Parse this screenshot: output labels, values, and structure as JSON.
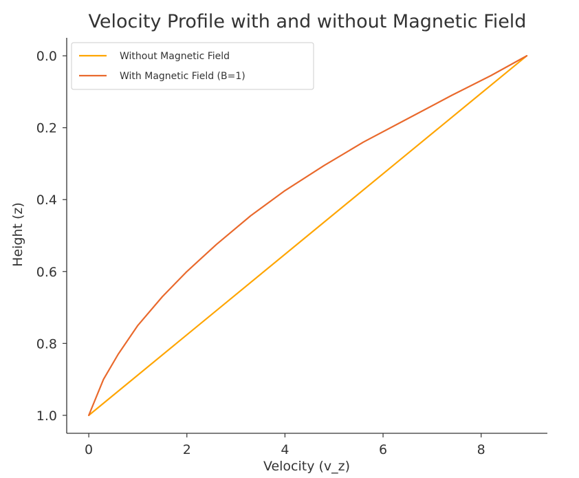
{
  "chart_data": {
    "type": "line",
    "title": "Velocity Profile with and without Magnetic Field",
    "xlabel": "Velocity (v_z)",
    "ylabel": "Height (z)",
    "xlim": [
      -0.45,
      9.35
    ],
    "ylim": [
      1.05,
      -0.05
    ],
    "y_inverted": true,
    "grid": false,
    "legend_position": "top-left",
    "x_ticks": [
      0,
      2,
      4,
      6,
      8
    ],
    "x_tick_labels": [
      "0",
      "2",
      "4",
      "6",
      "8"
    ],
    "y_ticks": [
      0.0,
      0.2,
      0.4,
      0.6,
      0.8,
      1.0
    ],
    "y_tick_labels": [
      "0.0",
      "0.2",
      "0.4",
      "0.6",
      "0.8",
      "1.0"
    ],
    "series": [
      {
        "name": "Without Magnetic Field",
        "color": "#ffa500",
        "x": [
          0,
          0.893,
          1.786,
          2.679,
          3.572,
          4.465,
          5.358,
          6.251,
          7.144,
          8.037,
          8.93
        ],
        "y": [
          1.0,
          0.9,
          0.8,
          0.7,
          0.6,
          0.5,
          0.4,
          0.3,
          0.2,
          0.1,
          0.0
        ]
      },
      {
        "name": "With Magnetic Field (B=1)",
        "color": "#e9692c",
        "x": [
          0,
          0.3,
          0.6,
          1.0,
          1.5,
          2.0,
          2.6,
          3.3,
          4.0,
          4.8,
          5.6,
          6.5,
          7.4,
          8.2,
          8.93
        ],
        "y": [
          1.0,
          0.9,
          0.83,
          0.75,
          0.67,
          0.6,
          0.525,
          0.445,
          0.375,
          0.305,
          0.24,
          0.175,
          0.11,
          0.055,
          0.0
        ]
      }
    ]
  }
}
